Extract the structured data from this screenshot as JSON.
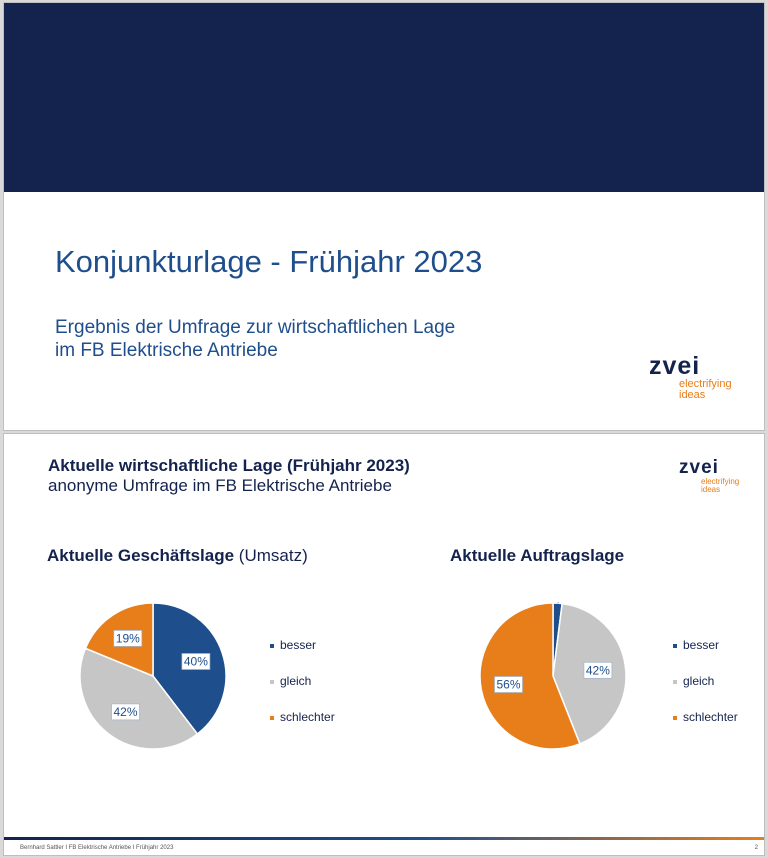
{
  "slide1": {
    "title": "Konjunkturlage - Frühjahr 2023",
    "subtitle_line1": "Ergebnis der Umfrage zur wirtschaftlichen Lage",
    "subtitle_line2": "im FB Elektrische Antriebe",
    "logo": {
      "brand": "zvei",
      "tag_line1": "electrifying",
      "tag_line2": "ideas"
    }
  },
  "slide2": {
    "heading": "Aktuelle wirtschaftliche Lage (Frühjahr 2023)",
    "subheading": "anonyme Umfrage im FB Elektrische Antriebe",
    "logo": {
      "brand": "zvei",
      "tag_line1": "electrifying",
      "tag_line2": "ideas"
    },
    "footer": "Bernhard Sattler I FB Elektrische Antriebe I Frühjahr 2023",
    "page_number": "2"
  },
  "colors": {
    "besser": "#1f4e8c",
    "gleich": "#c6c6c6",
    "schlechter": "#e87e1a",
    "navy": "#14234e"
  },
  "chart_data": [
    {
      "type": "pie",
      "title": "Aktuelle Geschäftslage",
      "title_suffix": " (Umsatz)",
      "categories": [
        "besser",
        "gleich",
        "schlechter"
      ],
      "values": [
        40,
        42,
        19
      ],
      "labels": [
        "40%",
        "42%",
        "19%"
      ],
      "legend": "right"
    },
    {
      "type": "pie",
      "title": "Aktuelle Auftragslage",
      "categories": [
        "besser",
        "gleich",
        "schlechter"
      ],
      "values": [
        2,
        42,
        56
      ],
      "labels": [
        "2%",
        "42%",
        "56%"
      ],
      "legend": "right"
    }
  ]
}
